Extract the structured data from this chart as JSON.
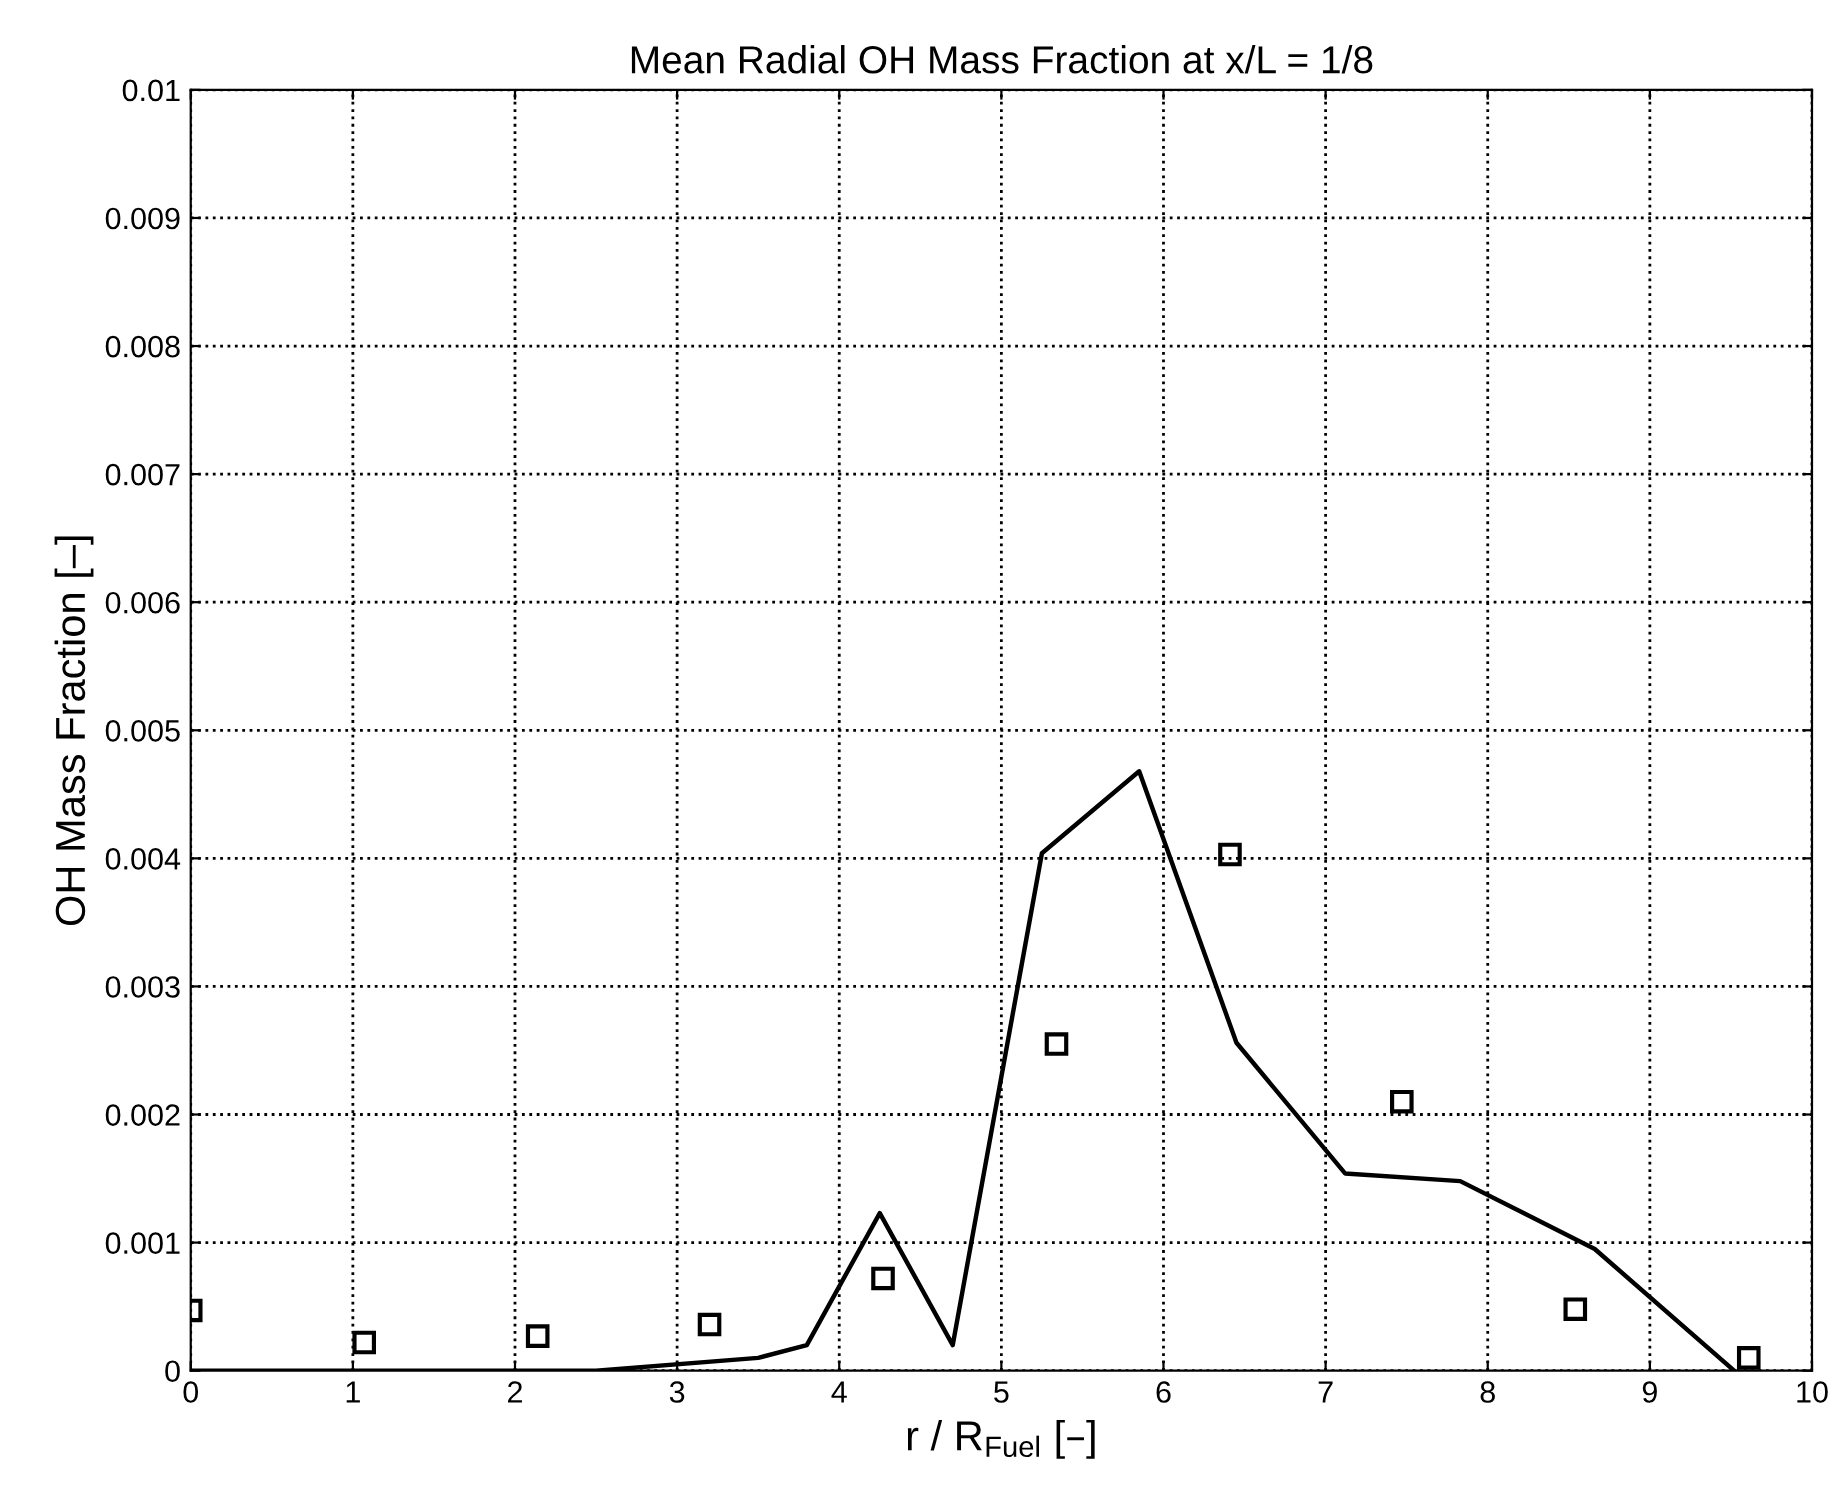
{
  "chart_data": {
    "type": "line",
    "title": "Mean Radial OH Mass Fraction at x/L = 1/8",
    "xlabel": "r / R$_{Fuel}$ [–]",
    "ylabel": "OH Mass Fraction [–]",
    "series": [
      {
        "color": "#000000",
        "marker": "none",
        "line_style": "solid",
        "x": [
          0,
          1.6,
          2.5,
          3.5,
          3.8,
          4.25,
          4.7,
          5.25,
          5.85,
          6.45,
          7.12,
          7.83,
          8.66,
          9.52
        ],
        "values": [
          0,
          0,
          0,
          0.0001,
          0.0002,
          0.00123,
          0.0002,
          0.00404,
          0.00468,
          0.00256,
          0.00154,
          0.00148,
          0.00095,
          0
        ]
      },
      {
        "type": "scatter",
        "color": "#000000",
        "marker": "square",
        "x": [
          0,
          1.07,
          2.14,
          3.2,
          4.27,
          5.34,
          6.41,
          7.47,
          8.54,
          9.61
        ],
        "values": [
          0.00047,
          0.00022,
          0.00027,
          0.00036,
          0.00072,
          0.00255,
          0.00403,
          0.0021,
          0.00048,
          0.0001
        ]
      }
    ],
    "xlim": [
      0,
      10
    ],
    "ylim": [
      0,
      0.01
    ],
    "xticks": [
      0,
      1,
      2,
      3,
      4,
      5,
      6,
      7,
      8,
      9,
      10
    ],
    "yticks": [
      0,
      0.001,
      0.002,
      0.003,
      0.004,
      0.005,
      0.006,
      0.007,
      0.008,
      0.009,
      0.01
    ],
    "grid": true
  }
}
